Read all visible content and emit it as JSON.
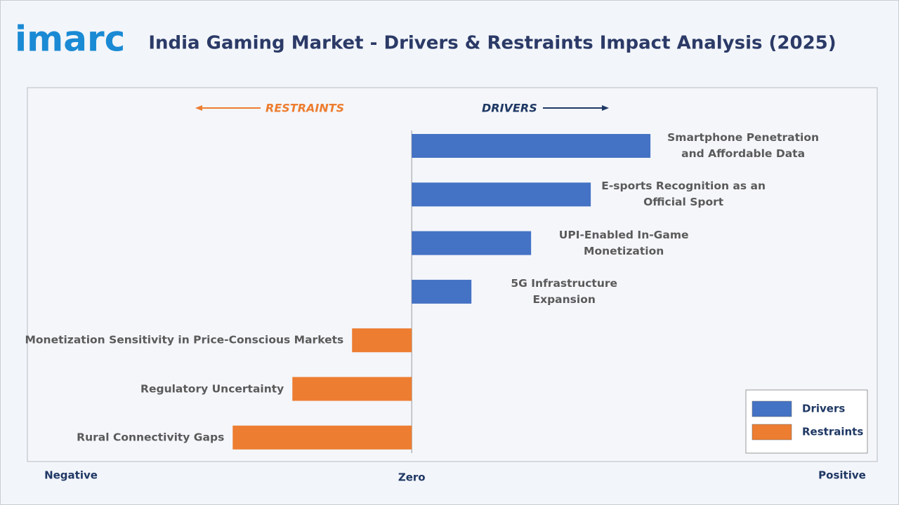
{
  "chart_data": {
    "type": "bar",
    "orientation": "horizontal",
    "logo": "imarc",
    "title": "India Gaming Market - Drivers & Restraints Impact Analysis (2025)",
    "headers": {
      "restraints": "RESTRAINTS",
      "drivers": "DRIVERS"
    },
    "categories": [
      "Smartphone Penetration and Affordable Data",
      "E-sports Recognition as an Official Sport",
      "UPI-Enabled In-Game Monetization",
      "5G Infrastructure Expansion",
      "Monetization Sensitivity in Price-Conscious Markets",
      "Regulatory Uncertainty",
      "Rural Connectivity Gaps"
    ],
    "series": [
      {
        "name": "Drivers",
        "color": "#4472c4",
        "values": [
          4,
          3,
          2,
          1,
          null,
          null,
          null
        ]
      },
      {
        "name": "Restraints",
        "color": "#ed7d31",
        "values": [
          null,
          null,
          null,
          null,
          -1,
          -2,
          -3
        ]
      }
    ],
    "xlim": [
      -6.44,
      7.8
    ],
    "axis_labels": {
      "negative": "Negative",
      "zero": "Zero",
      "positive": "Positive"
    },
    "legend": "lower right"
  }
}
